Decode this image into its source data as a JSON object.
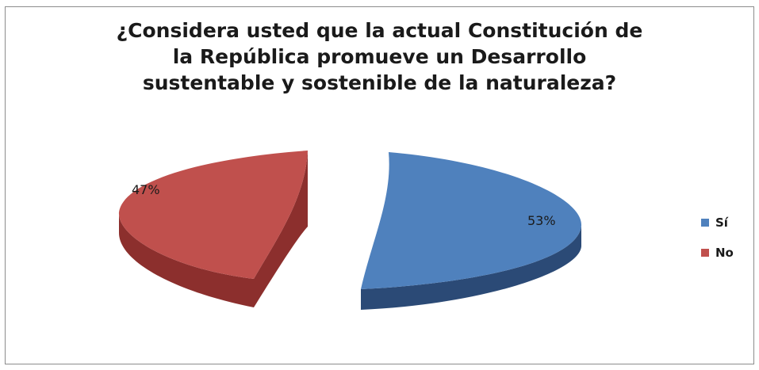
{
  "chart_data": {
    "type": "pie",
    "title_lines": [
      "¿Considera usted que la actual Constitución de",
      "la República promueve un Desarrollo",
      "sustentable y sostenible de la naturaleza?"
    ],
    "categories": [
      "Sí",
      "No"
    ],
    "values": [
      53,
      47
    ],
    "value_labels": [
      "53%",
      "47%"
    ],
    "colors": {
      "Sí": {
        "top": "#4f81bd",
        "side": "#2b4a76"
      },
      "No": {
        "top": "#c0504d",
        "side": "#8c2f2d"
      }
    },
    "exploded": true,
    "three_d": true,
    "legend_position": "right"
  }
}
